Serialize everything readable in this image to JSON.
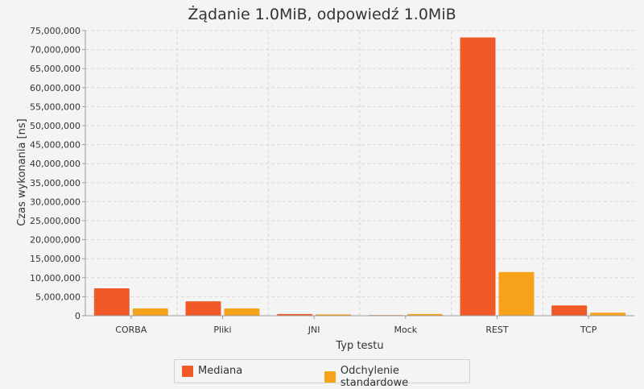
{
  "chart_data": {
    "type": "bar",
    "title": "Żądanie 1.0MiB, odpowiedź 1.0MiB",
    "xlabel": "Typ testu",
    "ylabel": "Czas wykonania [ns]",
    "categories": [
      "CORBA",
      "Pliki",
      "JNI",
      "Mock",
      "REST",
      "TCP"
    ],
    "series": [
      {
        "name": "Mediana",
        "color": "#f05a28",
        "values": [
          7200000,
          3800000,
          450000,
          150000,
          73200000,
          2700000
        ]
      },
      {
        "name": "Odchylenie standardowe",
        "color": "#f7a21b",
        "values": [
          1900000,
          1900000,
          350000,
          450000,
          11500000,
          800000
        ]
      }
    ],
    "ylim": [
      0,
      75000000
    ],
    "ytick_step": 5000000,
    "ytick_labels": [
      "0",
      "5,000,000",
      "10,000,000",
      "15,000,000",
      "20,000,000",
      "25,000,000",
      "30,000,000",
      "35,000,000",
      "40,000,000",
      "45,000,000",
      "50,000,000",
      "55,000,000",
      "60,000,000",
      "65,000,000",
      "70,000,000",
      "75,000,000"
    ],
    "grid": true,
    "legend": "bottom"
  }
}
